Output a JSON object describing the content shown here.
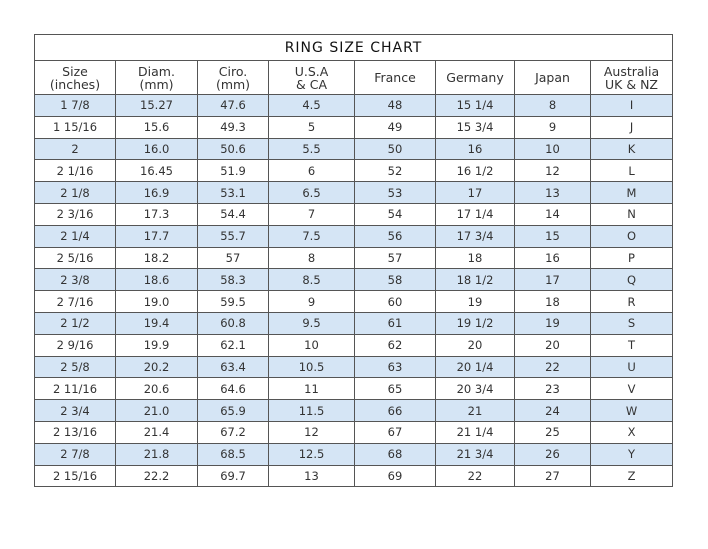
{
  "title": "RING SIZE CHART",
  "columns": [
    [
      "Size",
      "(inches)"
    ],
    [
      "Diam.",
      "(mm)"
    ],
    [
      "Ciro.",
      "(mm)"
    ],
    [
      "U.S.A",
      "& CA"
    ],
    [
      "France",
      ""
    ],
    [
      "Germany",
      ""
    ],
    [
      "Japan",
      ""
    ],
    [
      "Australia",
      "UK & NZ"
    ]
  ],
  "rows": [
    [
      "1 7/8",
      "15.27",
      "47.6",
      "4.5",
      "48",
      "15 1/4",
      "8",
      "I"
    ],
    [
      "1 15/16",
      "15.6",
      "49.3",
      "5",
      "49",
      "15 3/4",
      "9",
      "J"
    ],
    [
      "2",
      "16.0",
      "50.6",
      "5.5",
      "50",
      "16",
      "10",
      "K"
    ],
    [
      "2 1/16",
      "16.45",
      "51.9",
      "6",
      "52",
      "16 1/2",
      "12",
      "L"
    ],
    [
      "2 1/8",
      "16.9",
      "53.1",
      "6.5",
      "53",
      "17",
      "13",
      "M"
    ],
    [
      "2 3/16",
      "17.3",
      "54.4",
      "7",
      "54",
      "17 1/4",
      "14",
      "N"
    ],
    [
      "2 1/4",
      "17.7",
      "55.7",
      "7.5",
      "56",
      "17 3/4",
      "15",
      "O"
    ],
    [
      "2 5/16",
      "18.2",
      "57",
      "8",
      "57",
      "18",
      "16",
      "P"
    ],
    [
      "2 3/8",
      "18.6",
      "58.3",
      "8.5",
      "58",
      "18 1/2",
      "17",
      "Q"
    ],
    [
      "2 7/16",
      "19.0",
      "59.5",
      "9",
      "60",
      "19",
      "18",
      "R"
    ],
    [
      "2 1/2",
      "19.4",
      "60.8",
      "9.5",
      "61",
      "19 1/2",
      "19",
      "S"
    ],
    [
      "2 9/16",
      "19.9",
      "62.1",
      "10",
      "62",
      "20",
      "20",
      "T"
    ],
    [
      "2 5/8",
      "20.2",
      "63.4",
      "10.5",
      "63",
      "20 1/4",
      "22",
      "U"
    ],
    [
      "2 11/16",
      "20.6",
      "64.6",
      "11",
      "65",
      "20 3/4",
      "23",
      "V"
    ],
    [
      "2 3/4",
      "21.0",
      "65.9",
      "11.5",
      "66",
      "21",
      "24",
      "W"
    ],
    [
      "2 13/16",
      "21.4",
      "67.2",
      "12",
      "67",
      "21 1/4",
      "25",
      "X"
    ],
    [
      "2 7/8",
      "21.8",
      "68.5",
      "12.5",
      "68",
      "21 3/4",
      "26",
      "Y"
    ],
    [
      "2 15/16",
      "22.2",
      "69.7",
      "13",
      "69",
      "22",
      "27",
      "Z"
    ]
  ],
  "colors": {
    "stripe": "#d5e5f5",
    "border": "#555555"
  }
}
